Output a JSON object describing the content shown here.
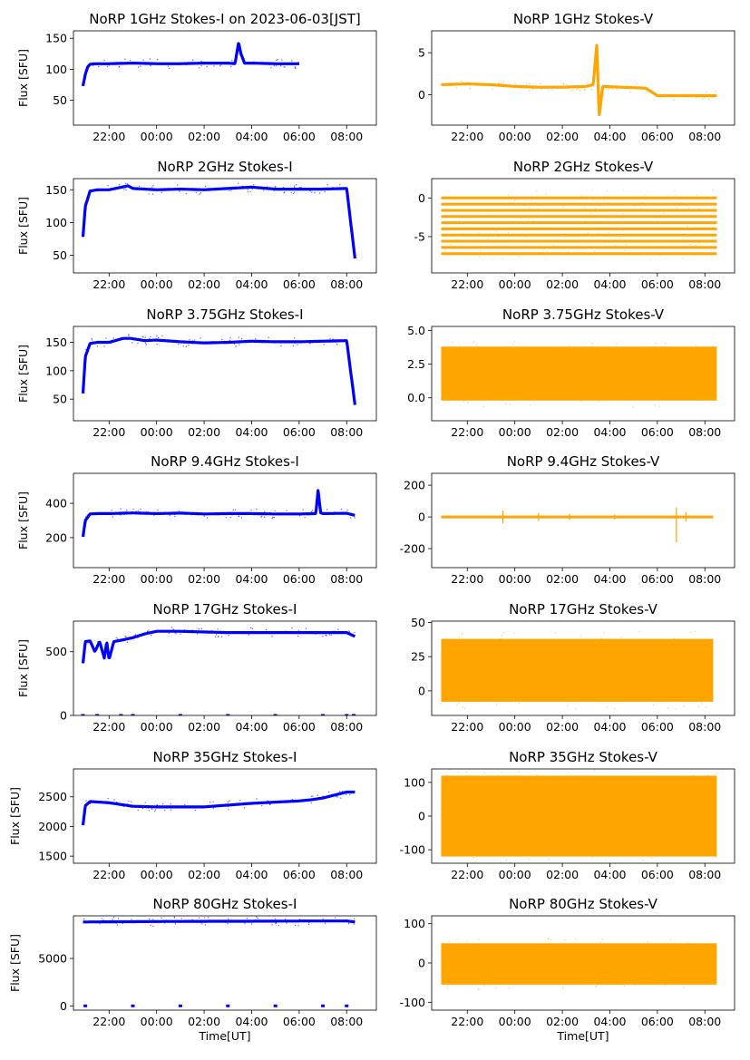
{
  "figure": {
    "background": "#ffffff",
    "colors": {
      "stokes_i": "#0000ff",
      "stokes_v": "#ffa500",
      "axis": "#000000"
    },
    "xtick_labels": [
      "22:00",
      "00:00",
      "02:00",
      "04:00",
      "06:00",
      "08:00"
    ]
  },
  "chart_data": [
    {
      "type": "scatter",
      "title": "NoRP 1GHz Stokes-I on 2023-06-03[JST]",
      "ylabel": "Flux [SFU]",
      "xlabel": "",
      "x_unit": "hours since 20:00 UT",
      "xlim": [
        0.5,
        13.25
      ],
      "ylim": [
        10,
        162
      ],
      "yticks": [
        50,
        100,
        150
      ],
      "grid": false,
      "legend": "none",
      "color": "#0000ff",
      "x": [
        0.9,
        1.0,
        1.1,
        1.2,
        1.4,
        2.0,
        3.0,
        4.0,
        5.0,
        6.0,
        7.0,
        7.3,
        7.45,
        7.55,
        7.7,
        8.0,
        9.0,
        10.0
      ],
      "values": [
        73,
        92,
        104,
        108,
        109,
        109,
        110,
        109,
        109,
        110,
        110,
        109,
        143,
        125,
        110,
        110,
        109,
        109
      ],
      "data_start": 0.9,
      "data_end": 10.0
    },
    {
      "type": "scatter",
      "title": "NoRP 1GHz Stokes-V",
      "ylabel": "",
      "xlabel": "",
      "x_unit": "hours since 20:00 UT",
      "xlim": [
        0.5,
        13.25
      ],
      "ylim": [
        -3.6,
        7.6
      ],
      "yticks": [
        0,
        5
      ],
      "grid": false,
      "legend": "none",
      "color": "#ffa500",
      "x": [
        0.9,
        2.0,
        3.0,
        4.0,
        5.0,
        6.0,
        7.0,
        7.3,
        7.45,
        7.55,
        7.7,
        8.5,
        9.5,
        10.0,
        11.0,
        12.5
      ],
      "values": [
        1.2,
        1.3,
        1.2,
        1.0,
        0.9,
        0.9,
        1.0,
        1.2,
        6.0,
        -2.5,
        1.0,
        0.9,
        0.8,
        -0.1,
        -0.1,
        -0.1
      ],
      "data_start": 0.9,
      "data_end": 12.5
    },
    {
      "type": "scatter",
      "title": "NoRP 2GHz Stokes-I",
      "ylabel": "Flux [SFU]",
      "xlabel": "",
      "x_unit": "hours since 20:00 UT",
      "xlim": [
        0.5,
        13.25
      ],
      "ylim": [
        23,
        167
      ],
      "yticks": [
        50,
        100,
        150
      ],
      "grid": false,
      "legend": "none",
      "color": "#0000ff",
      "x": [
        0.9,
        1.0,
        1.2,
        1.5,
        2.0,
        2.8,
        3.0,
        4.0,
        5.0,
        6.0,
        7.0,
        8.0,
        9.0,
        10.0,
        11.0,
        12.0,
        12.35
      ],
      "values": [
        78,
        125,
        148,
        150,
        150,
        156,
        152,
        150,
        151,
        150,
        152,
        154,
        151,
        151,
        151,
        152,
        45
      ],
      "data_start": 0.9,
      "data_end": 12.35
    },
    {
      "type": "scatter",
      "title": "NoRP 2GHz Stokes-V",
      "ylabel": "",
      "xlabel": "",
      "x_unit": "hours since 20:00 UT",
      "xlim": [
        0.5,
        13.25
      ],
      "ylim": [
        -9.7,
        2.5
      ],
      "yticks": [
        -5,
        0
      ],
      "grid": false,
      "legend": "none",
      "color": "#ffa500",
      "levels": [
        0.0,
        -0.8,
        -1.6,
        -2.4,
        -3.2,
        -4.0,
        -4.8,
        -5.6,
        -6.4,
        -7.2
      ],
      "data_start": 0.9,
      "data_end": 12.5
    },
    {
      "type": "scatter",
      "title": "NoRP 3.75GHz Stokes-I",
      "ylabel": "Flux [SFU]",
      "xlabel": "",
      "x_unit": "hours since 20:00 UT",
      "xlim": [
        0.5,
        13.25
      ],
      "ylim": [
        12,
        178
      ],
      "yticks": [
        50,
        100,
        150
      ],
      "grid": false,
      "legend": "none",
      "color": "#0000ff",
      "x": [
        0.9,
        1.0,
        1.2,
        1.5,
        2.0,
        2.6,
        2.9,
        3.5,
        4.0,
        5.0,
        6.0,
        7.0,
        8.0,
        9.0,
        10.0,
        11.0,
        12.0,
        12.35
      ],
      "values": [
        60,
        125,
        148,
        150,
        150,
        157,
        157,
        153,
        154,
        151,
        149,
        150,
        152,
        151,
        151,
        152,
        153,
        40
      ],
      "data_start": 0.9,
      "data_end": 12.35
    },
    {
      "type": "scatter",
      "title": "NoRP 3.75GHz Stokes-V",
      "ylabel": "",
      "xlabel": "",
      "x_unit": "hours since 20:00 UT",
      "xlim": [
        0.5,
        13.25
      ],
      "ylim": [
        -1.7,
        5.3
      ],
      "yticks": [
        0.0,
        2.5,
        5.0
      ],
      "grid": false,
      "legend": "none",
      "color": "#ffa500",
      "band": [
        -0.2,
        3.8
      ],
      "data_start": 0.9,
      "data_end": 12.5
    },
    {
      "type": "scatter",
      "title": "NoRP 9.4GHz Stokes-I",
      "ylabel": "Flux [SFU]",
      "xlabel": "",
      "x_unit": "hours since 20:00 UT",
      "xlim": [
        0.5,
        13.25
      ],
      "ylim": [
        25,
        575
      ],
      "yticks": [
        200,
        400
      ],
      "grid": false,
      "legend": "none",
      "color": "#0000ff",
      "x": [
        0.9,
        1.0,
        1.2,
        1.5,
        2.0,
        3.0,
        4.0,
        5.0,
        6.0,
        7.0,
        8.0,
        9.0,
        10.0,
        10.7,
        10.8,
        10.9,
        11.0,
        12.0,
        12.35
      ],
      "values": [
        205,
        300,
        338,
        340,
        340,
        344,
        340,
        343,
        338,
        340,
        340,
        338,
        338,
        340,
        480,
        345,
        340,
        342,
        330
      ],
      "data_start": 0.9,
      "data_end": 12.35
    },
    {
      "type": "scatter",
      "title": "NoRP 9.4GHz Stokes-V",
      "ylabel": "",
      "xlabel": "",
      "x_unit": "hours since 20:00 UT",
      "xlim": [
        0.5,
        13.25
      ],
      "ylim": [
        -320,
        275
      ],
      "yticks": [
        -200,
        0,
        200
      ],
      "grid": false,
      "legend": "none",
      "color": "#ffa500",
      "spikes": [
        [
          3.5,
          40,
          -40
        ],
        [
          5.0,
          25,
          -25
        ],
        [
          6.3,
          20,
          -20
        ],
        [
          8.2,
          15,
          -15
        ],
        [
          10.8,
          60,
          -160
        ],
        [
          11.2,
          30,
          -30
        ]
      ],
      "data_start": 0.9,
      "data_end": 12.35
    },
    {
      "type": "scatter",
      "title": "NoRP 17GHz Stokes-I",
      "ylabel": "Flux [SFU]",
      "xlabel": "",
      "x_unit": "hours since 20:00 UT",
      "xlim": [
        0.5,
        13.25
      ],
      "ylim": [
        0,
        740
      ],
      "yticks": [
        0,
        500
      ],
      "grid": false,
      "legend": "none",
      "color": "#0000ff",
      "x": [
        0.9,
        1.0,
        1.2,
        1.4,
        1.6,
        1.8,
        1.9,
        2.0,
        2.2,
        2.5,
        3.0,
        3.5,
        4.0,
        5.0,
        6.0,
        7.0,
        8.0,
        9.0,
        10.0,
        11.0,
        12.0,
        12.35
      ],
      "values": [
        410,
        580,
        585,
        500,
        580,
        450,
        580,
        440,
        580,
        590,
        610,
        640,
        660,
        660,
        655,
        650,
        650,
        650,
        650,
        650,
        650,
        620
      ],
      "zero_dots": [
        0.9,
        1.5,
        2.5,
        3.0,
        5.0,
        7.0,
        9.0,
        11.0,
        12.0,
        12.3
      ],
      "data_start": 0.9,
      "data_end": 12.35
    },
    {
      "type": "scatter",
      "title": "NoRP 17GHz Stokes-V",
      "ylabel": "",
      "xlabel": "",
      "x_unit": "hours since 20:00 UT",
      "xlim": [
        0.5,
        13.25
      ],
      "ylim": [
        -18,
        51
      ],
      "yticks": [
        0,
        25,
        50
      ],
      "grid": false,
      "legend": "none",
      "color": "#ffa500",
      "band": [
        -8,
        38
      ],
      "data_start": 0.9,
      "data_end": 12.35
    },
    {
      "type": "scatter",
      "title": "NoRP 35GHz Stokes-I",
      "ylabel": "Flux [SFU]",
      "xlabel": "",
      "x_unit": "hours since 20:00 UT",
      "xlim": [
        0.5,
        13.25
      ],
      "ylim": [
        1380,
        2970
      ],
      "yticks": [
        1500,
        2000,
        2500
      ],
      "grid": false,
      "legend": "none",
      "color": "#0000ff",
      "x": [
        0.9,
        1.0,
        1.2,
        2.0,
        3.0,
        4.0,
        5.0,
        6.0,
        7.0,
        8.0,
        9.0,
        10.0,
        10.5,
        11.0,
        11.5,
        12.0,
        12.35
      ],
      "values": [
        2020,
        2350,
        2420,
        2400,
        2340,
        2330,
        2330,
        2330,
        2360,
        2390,
        2410,
        2430,
        2450,
        2480,
        2530,
        2580,
        2580
      ],
      "data_start": 0.9,
      "data_end": 12.35
    },
    {
      "type": "scatter",
      "title": "NoRP 35GHz Stokes-V",
      "ylabel": "",
      "xlabel": "",
      "x_unit": "hours since 20:00 UT",
      "xlim": [
        0.5,
        13.25
      ],
      "ylim": [
        -140,
        140
      ],
      "yticks": [
        -100,
        0,
        100
      ],
      "grid": false,
      "legend": "none",
      "color": "#ffa500",
      "band": [
        -120,
        120
      ],
      "data_start": 0.9,
      "data_end": 12.5
    },
    {
      "type": "scatter",
      "title": "NoRP 80GHz Stokes-I",
      "ylabel": "Flux [SFU]",
      "xlabel": "Time[UT]",
      "x_unit": "hours since 20:00 UT",
      "xlim": [
        0.5,
        13.25
      ],
      "ylim": [
        -450,
        9500
      ],
      "yticks": [
        0,
        5000
      ],
      "grid": false,
      "legend": "none",
      "color": "#0000ff",
      "x": [
        0.9,
        2.0,
        3.0,
        4.0,
        5.0,
        6.0,
        7.0,
        8.0,
        9.0,
        10.0,
        11.0,
        12.0,
        12.35
      ],
      "values": [
        8850,
        8870,
        8880,
        8900,
        8910,
        8920,
        8930,
        8930,
        8940,
        8950,
        8950,
        8960,
        8850
      ],
      "zero_dots": [
        1.0,
        3.0,
        5.0,
        7.0,
        9.0,
        11.0,
        12.0
      ],
      "data_start": 0.9,
      "data_end": 12.35
    },
    {
      "type": "scatter",
      "title": "NoRP 80GHz Stokes-V",
      "ylabel": "",
      "xlabel": "Time[UT]",
      "x_unit": "hours since 20:00 UT",
      "xlim": [
        0.5,
        13.25
      ],
      "ylim": [
        -120,
        120
      ],
      "yticks": [
        -100,
        0,
        100
      ],
      "grid": false,
      "legend": "none",
      "color": "#ffa500",
      "band": [
        -55,
        50
      ],
      "data_start": 0.9,
      "data_end": 12.5
    }
  ]
}
